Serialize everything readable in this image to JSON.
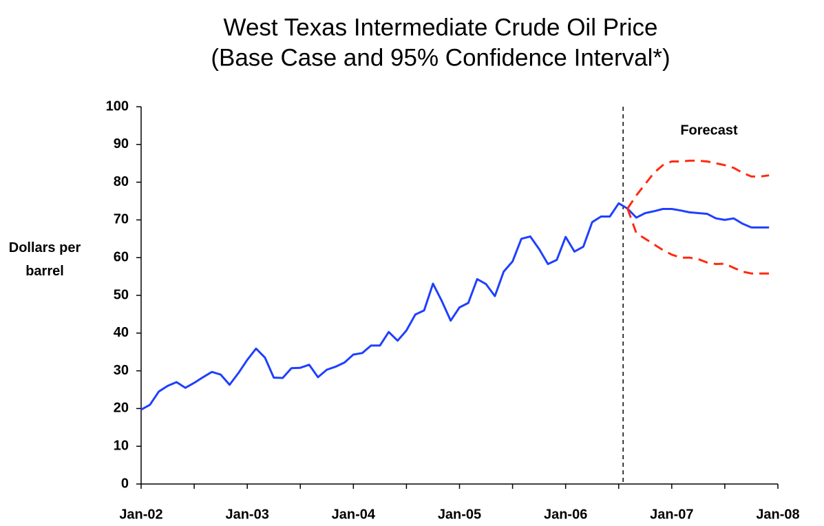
{
  "chart_data": {
    "type": "line",
    "title": "West Texas Intermediate Crude Oil Price",
    "subtitle": "(Base Case and 95% Confidence Interval*)",
    "ylabel": "Dollars per barrel",
    "annotation": "Forecast",
    "categories": [
      "Jan-02",
      null,
      null,
      null,
      null,
      null,
      null,
      null,
      null,
      null,
      null,
      null,
      "Jan-03",
      null,
      null,
      null,
      null,
      null,
      null,
      null,
      null,
      null,
      null,
      null,
      "Jan-04",
      null,
      null,
      null,
      null,
      null,
      null,
      null,
      null,
      null,
      null,
      null,
      "Jan-05",
      null,
      null,
      null,
      null,
      null,
      null,
      null,
      null,
      null,
      null,
      null,
      "Jan-06",
      null,
      null,
      null,
      null,
      null,
      null,
      null,
      null,
      null,
      null,
      null,
      "Jan-07",
      null,
      null,
      null,
      null,
      null,
      null,
      null,
      null,
      null,
      null,
      null,
      "Jan-08"
    ],
    "series": [
      {
        "color": "#1f3fff",
        "dash": false,
        "values": [
          19.7,
          21,
          24.5,
          26,
          27,
          25.5,
          26.8,
          28.3,
          29.7,
          29,
          26.3,
          29.4,
          32.9,
          35.9,
          33.5,
          28.2,
          28.1,
          30.7,
          30.8,
          31.6,
          28.3,
          30.3,
          31.1,
          32.2,
          34.3,
          34.7,
          36.7,
          36.7,
          40.3,
          38,
          40.7,
          44.9,
          46,
          53.1,
          48.5,
          43.3,
          46.8,
          48,
          54.3,
          53,
          49.8,
          56.3,
          59,
          65,
          65.6,
          62.3,
          58.3,
          59.4,
          65.5,
          61.6,
          62.9,
          69.4,
          70.9,
          70.9,
          74.4,
          73,
          70.6,
          71.8,
          72.3,
          72.9,
          72.9,
          72.5,
          72,
          71.8,
          71.6,
          70.4,
          70,
          70.4,
          69,
          68,
          68,
          68,
          null
        ]
      },
      {
        "color": "#ff2a10",
        "dash": true,
        "values": [
          null,
          null,
          null,
          null,
          null,
          null,
          null,
          null,
          null,
          null,
          null,
          null,
          null,
          null,
          null,
          null,
          null,
          null,
          null,
          null,
          null,
          null,
          null,
          null,
          null,
          null,
          null,
          null,
          null,
          null,
          null,
          null,
          null,
          null,
          null,
          null,
          null,
          null,
          null,
          null,
          null,
          null,
          null,
          null,
          null,
          null,
          null,
          null,
          null,
          null,
          null,
          null,
          null,
          null,
          null,
          73,
          76.5,
          79.5,
          82.5,
          84.5,
          85.5,
          85.5,
          85.7,
          85.7,
          85.5,
          85,
          84.5,
          83.8,
          82.5,
          81.5,
          81.5,
          81.8,
          null
        ]
      },
      {
        "color": "#ff2a10",
        "dash": true,
        "values": [
          null,
          null,
          null,
          null,
          null,
          null,
          null,
          null,
          null,
          null,
          null,
          null,
          null,
          null,
          null,
          null,
          null,
          null,
          null,
          null,
          null,
          null,
          null,
          null,
          null,
          null,
          null,
          null,
          null,
          null,
          null,
          null,
          null,
          null,
          null,
          null,
          null,
          null,
          null,
          null,
          null,
          null,
          null,
          null,
          null,
          null,
          null,
          null,
          null,
          null,
          null,
          null,
          null,
          null,
          null,
          73,
          66.5,
          65,
          63.5,
          62,
          60.8,
          60,
          60,
          59.6,
          58.7,
          58.3,
          58.4,
          57.3,
          56.3,
          55.8,
          55.8,
          55.8,
          null
        ]
      }
    ],
    "ylim": [
      0,
      100
    ],
    "yticks": [
      0,
      10,
      20,
      30,
      40,
      50,
      60,
      70,
      80,
      90,
      100
    ],
    "grid": false
  }
}
